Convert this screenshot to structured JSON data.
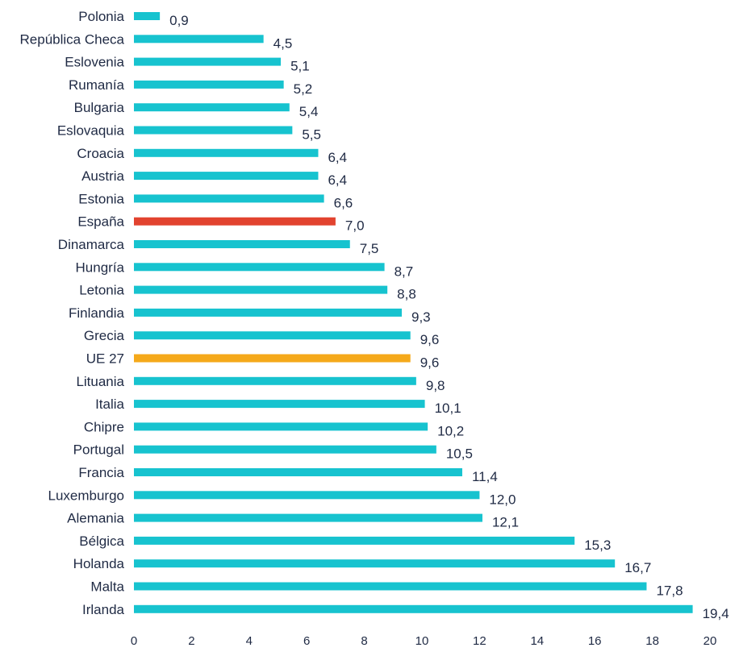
{
  "chart_data": {
    "type": "bar",
    "orientation": "horizontal",
    "title": "",
    "xlabel": "",
    "ylabel": "",
    "xlim": [
      0,
      20
    ],
    "xticks": [
      0,
      2,
      4,
      6,
      8,
      10,
      12,
      14,
      16,
      18,
      20
    ],
    "grid": false,
    "legend": "none",
    "colors": {
      "default": "#17c3cf",
      "highlight_spain": "#e2432f",
      "highlight_eu": "#f5a91a"
    },
    "bars": [
      {
        "category": "Polonia",
        "value": 0.9,
        "label": "0,9",
        "color": "default"
      },
      {
        "category": "República Checa",
        "value": 4.5,
        "label": "4,5",
        "color": "default"
      },
      {
        "category": "Eslovenia",
        "value": 5.1,
        "label": "5,1",
        "color": "default"
      },
      {
        "category": "Rumanía",
        "value": 5.2,
        "label": "5,2",
        "color": "default"
      },
      {
        "category": "Bulgaria",
        "value": 5.4,
        "label": "5,4",
        "color": "default"
      },
      {
        "category": "Eslovaquia",
        "value": 5.5,
        "label": "5,5",
        "color": "default"
      },
      {
        "category": "Croacia",
        "value": 6.4,
        "label": "6,4",
        "color": "default"
      },
      {
        "category": "Austria",
        "value": 6.4,
        "label": "6,4",
        "color": "default"
      },
      {
        "category": "Estonia",
        "value": 6.6,
        "label": "6,6",
        "color": "default"
      },
      {
        "category": "España",
        "value": 7.0,
        "label": "7,0",
        "color": "highlight_spain"
      },
      {
        "category": "Dinamarca",
        "value": 7.5,
        "label": "7,5",
        "color": "default"
      },
      {
        "category": "Hungría",
        "value": 8.7,
        "label": "8,7",
        "color": "default"
      },
      {
        "category": "Letonia",
        "value": 8.8,
        "label": "8,8",
        "color": "default"
      },
      {
        "category": "Finlandia",
        "value": 9.3,
        "label": "9,3",
        "color": "default"
      },
      {
        "category": "Grecia",
        "value": 9.6,
        "label": "9,6",
        "color": "default"
      },
      {
        "category": "UE 27",
        "value": 9.6,
        "label": "9,6",
        "color": "highlight_eu"
      },
      {
        "category": "Lituania",
        "value": 9.8,
        "label": "9,8",
        "color": "default"
      },
      {
        "category": "Italia",
        "value": 10.1,
        "label": "10,1",
        "color": "default"
      },
      {
        "category": "Chipre",
        "value": 10.2,
        "label": "10,2",
        "color": "default"
      },
      {
        "category": "Portugal",
        "value": 10.5,
        "label": "10,5",
        "color": "default"
      },
      {
        "category": "Francia",
        "value": 11.4,
        "label": "11,4",
        "color": "default"
      },
      {
        "category": "Luxemburgo",
        "value": 12.0,
        "label": "12,0",
        "color": "default"
      },
      {
        "category": "Alemania",
        "value": 12.1,
        "label": "12,1",
        "color": "default"
      },
      {
        "category": "Bélgica",
        "value": 15.3,
        "label": "15,3",
        "color": "default"
      },
      {
        "category": "Holanda",
        "value": 16.7,
        "label": "16,7",
        "color": "default"
      },
      {
        "category": "Malta",
        "value": 17.8,
        "label": "17,8",
        "color": "default"
      },
      {
        "category": "Irlanda",
        "value": 19.4,
        "label": "19,4",
        "color": "default"
      }
    ]
  }
}
